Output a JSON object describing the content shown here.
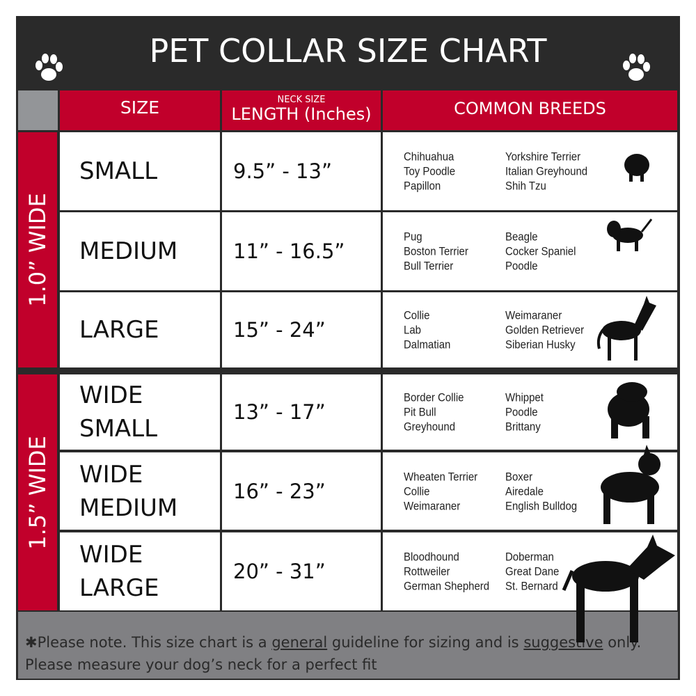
{
  "title": "PET COLLAR SIZE CHART",
  "headers": {
    "size": "SIZE",
    "length_small": "NECK SIZE",
    "length": "LENGTH (Inches)",
    "breeds": "COMMON BREEDS"
  },
  "groups": [
    {
      "label": "1.0” WIDE"
    },
    {
      "label": "1.5” WIDE"
    }
  ],
  "rows": [
    {
      "size": "SMALL",
      "length": "9.5” - 13”",
      "breeds_a": [
        "Chihuahua",
        "Toy Poodle",
        "Papillon"
      ],
      "breeds_b": [
        "Yorkshire Terrier",
        "Italian Greyhound",
        "Shih Tzu"
      ]
    },
    {
      "size": "MEDIUM",
      "length": "11” - 16.5”",
      "breeds_a": [
        "Pug",
        "Boston Terrier",
        "Bull Terrier"
      ],
      "breeds_b": [
        "Beagle",
        "Cocker Spaniel",
        "Poodle"
      ]
    },
    {
      "size": "LARGE",
      "length": "15” - 24”",
      "breeds_a": [
        "Collie",
        "Lab",
        "Dalmatian"
      ],
      "breeds_b": [
        "Weimaraner",
        "Golden Retriever",
        "Siberian Husky"
      ]
    },
    {
      "size": "WIDE SMALL",
      "size_l1": "WIDE",
      "size_l2": "SMALL",
      "length": "13” - 17”",
      "breeds_a": [
        "Border Collie",
        "Pit Bull",
        "Greyhound"
      ],
      "breeds_b": [
        "Whippet",
        "Poodle",
        "Brittany"
      ]
    },
    {
      "size": "WIDE MEDIUM",
      "size_l1": "WIDE",
      "size_l2": "MEDIUM",
      "length": "16” - 23”",
      "breeds_a": [
        "Wheaten Terrier",
        "Collie",
        "Weimaraner"
      ],
      "breeds_b": [
        "Boxer",
        "Airedale",
        "English Bulldog"
      ]
    },
    {
      "size": "WIDE LARGE",
      "size_l1": "WIDE",
      "size_l2": "LARGE",
      "length": "20” - 31”",
      "breeds_a": [
        "Bloodhound",
        "Rottweiler",
        "German Shepherd"
      ],
      "breeds_b": [
        "Doberman",
        "Great Dane",
        "St. Bernard"
      ]
    }
  ],
  "footer": {
    "p1": "✱Please note. This size chart is a",
    "u1": "general",
    "p2": "guideline for sizing and is",
    "u2": "suggestive",
    "p3": "only.",
    "line2": "Please measure your dog’s neck for a perfect fit"
  },
  "icons": {
    "paw": "paw-icon",
    "dogs": [
      "dog-silhouette-icon"
    ]
  },
  "colors": {
    "accent": "#c1002b",
    "dark": "#2a2a2a",
    "grey": "#808083"
  }
}
